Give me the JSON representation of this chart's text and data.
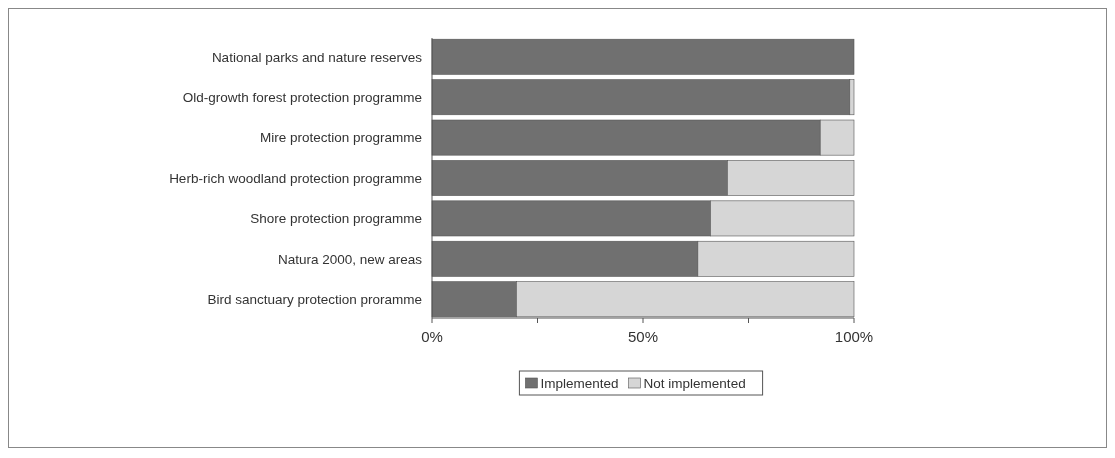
{
  "chart_data": {
    "type": "bar",
    "orientation": "horizontal",
    "stacked": true,
    "categories": [
      "National parks and nature reserves",
      "Old-growth forest protection programme",
      "Mire protection programme",
      "Herb-rich woodland protection programme",
      "Shore protection programme",
      "Natura 2000, new areas",
      "Bird sanctuary protection proramme"
    ],
    "series": [
      {
        "name": "Implemented",
        "color": "#707070",
        "values": [
          100,
          99,
          92,
          70,
          66,
          63,
          20
        ]
      },
      {
        "name": "Not implemented",
        "color": "#d6d6d6",
        "values": [
          0,
          1,
          8,
          30,
          34,
          37,
          80
        ]
      }
    ],
    "xlim": [
      0,
      100
    ],
    "xticks": [
      {
        "value": 0,
        "label": "0%"
      },
      {
        "value": 25,
        "label": null
      },
      {
        "value": 50,
        "label": "50%"
      },
      {
        "value": 75,
        "label": null
      },
      {
        "value": 100,
        "label": "100%"
      }
    ],
    "legend": "bottom"
  }
}
